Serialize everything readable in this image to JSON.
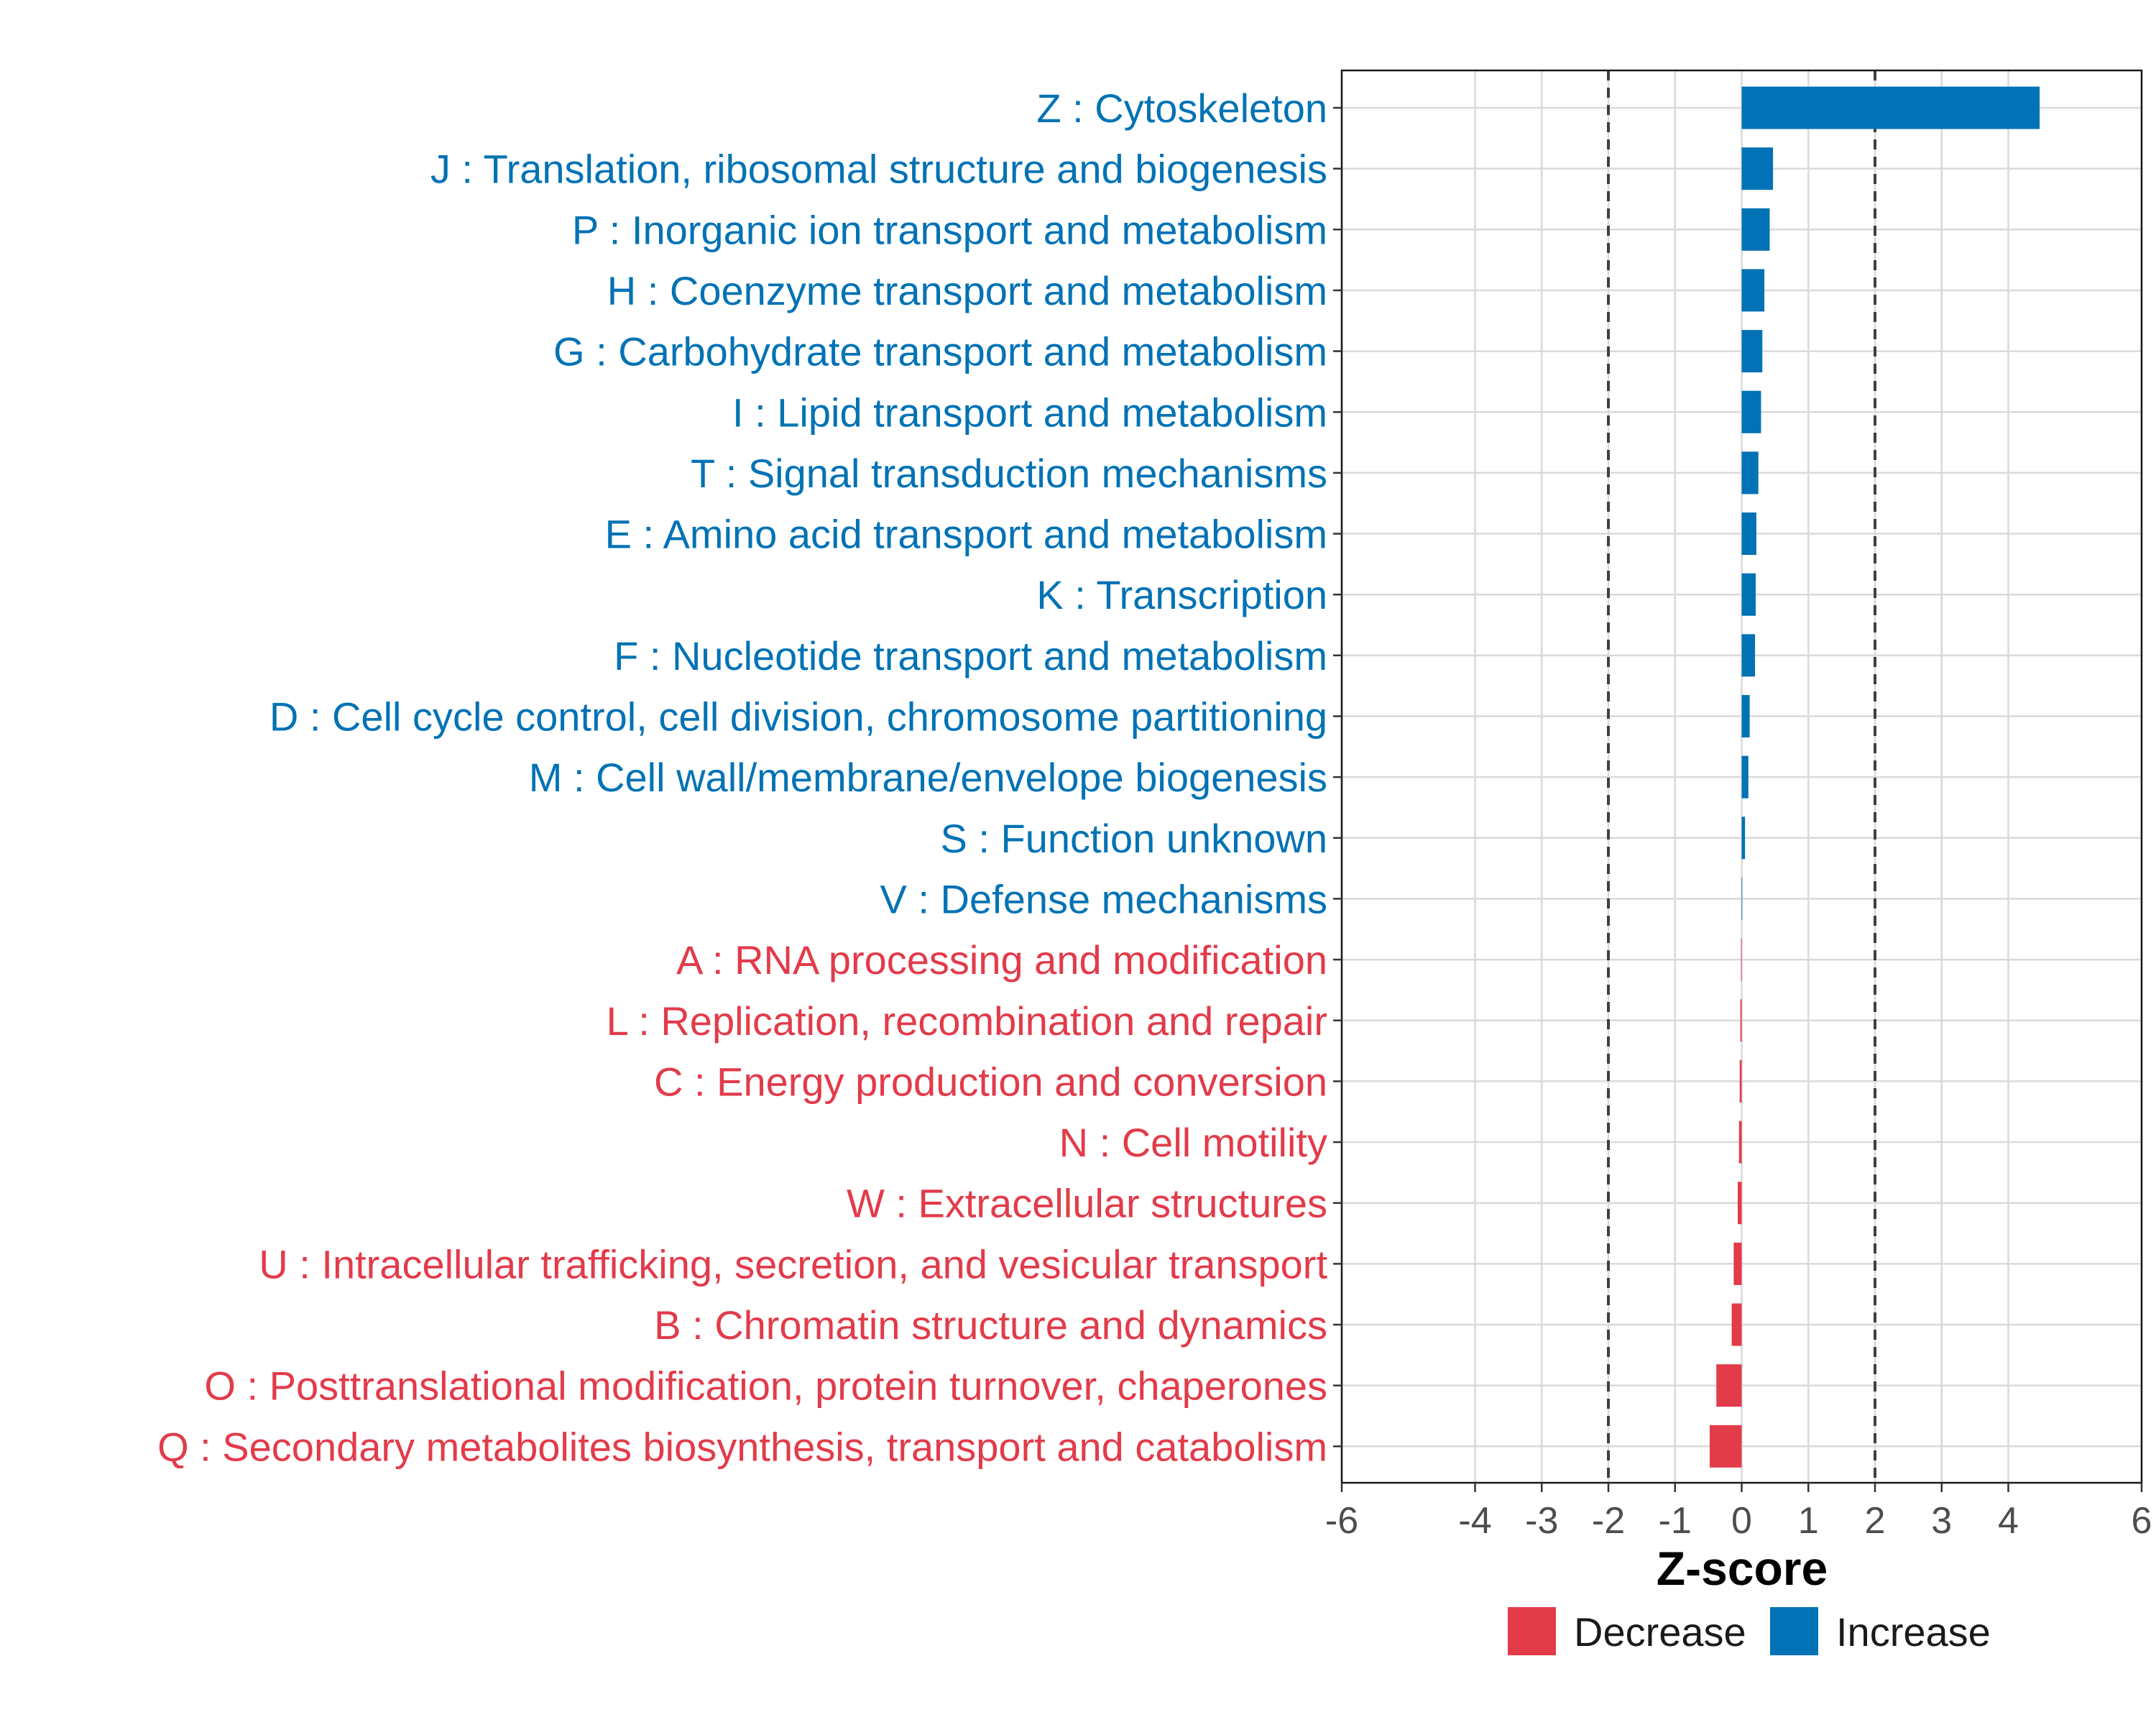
{
  "chart_data": {
    "type": "bar",
    "orientation": "horizontal",
    "title": "",
    "xlabel": "Z-score",
    "ylabel": "",
    "xlim": [
      -6,
      6
    ],
    "x_ticks": [
      -6,
      -4,
      -3,
      -2,
      -1,
      0,
      1,
      2,
      3,
      4,
      6
    ],
    "x_tick_labels": [
      "-6",
      "-4",
      "-3",
      "-2",
      "-1",
      "0",
      "1",
      "2",
      "3",
      "4",
      "6"
    ],
    "threshold_lines": [
      -2,
      2
    ],
    "grid": true,
    "legend_position": "bottom",
    "colors": {
      "Increase": "#0072B5",
      "Decrease": "#E23B4A"
    },
    "categories": [
      "Z : Cytoskeleton",
      "J : Translation, ribosomal structure and biogenesis",
      "P : Inorganic ion transport and metabolism",
      "H : Coenzyme transport and metabolism",
      "G : Carbohydrate transport and metabolism",
      "I : Lipid transport and metabolism",
      "T : Signal transduction mechanisms",
      "E : Amino acid transport and metabolism",
      "K : Transcription",
      "F : Nucleotide transport and metabolism",
      "D : Cell cycle control, cell division, chromosome partitioning",
      "M : Cell wall/membrane/envelope biogenesis",
      "S : Function unknown",
      "V : Defense mechanisms",
      "A : RNA processing and modification",
      "L : Replication, recombination and repair",
      "C : Energy production and conversion",
      "N : Cell motility",
      "W : Extracellular structures",
      "U : Intracellular trafficking, secretion, and vesicular transport",
      "B : Chromatin structure and dynamics",
      "O : Posttranslational modification, protein turnover, chaperones",
      "Q : Secondary metabolites biosynthesis, transport and catabolism"
    ],
    "values": [
      4.47,
      0.47,
      0.42,
      0.34,
      0.31,
      0.29,
      0.25,
      0.22,
      0.21,
      0.2,
      0.12,
      0.1,
      0.05,
      0.0,
      -0.01,
      -0.02,
      -0.03,
      -0.04,
      -0.06,
      -0.12,
      -0.15,
      -0.38,
      -0.48
    ],
    "groups": [
      "Increase",
      "Increase",
      "Increase",
      "Increase",
      "Increase",
      "Increase",
      "Increase",
      "Increase",
      "Increase",
      "Increase",
      "Increase",
      "Increase",
      "Increase",
      "Increase",
      "Decrease",
      "Decrease",
      "Decrease",
      "Decrease",
      "Decrease",
      "Decrease",
      "Decrease",
      "Decrease",
      "Decrease"
    ],
    "legend": [
      "Decrease",
      "Increase"
    ]
  }
}
